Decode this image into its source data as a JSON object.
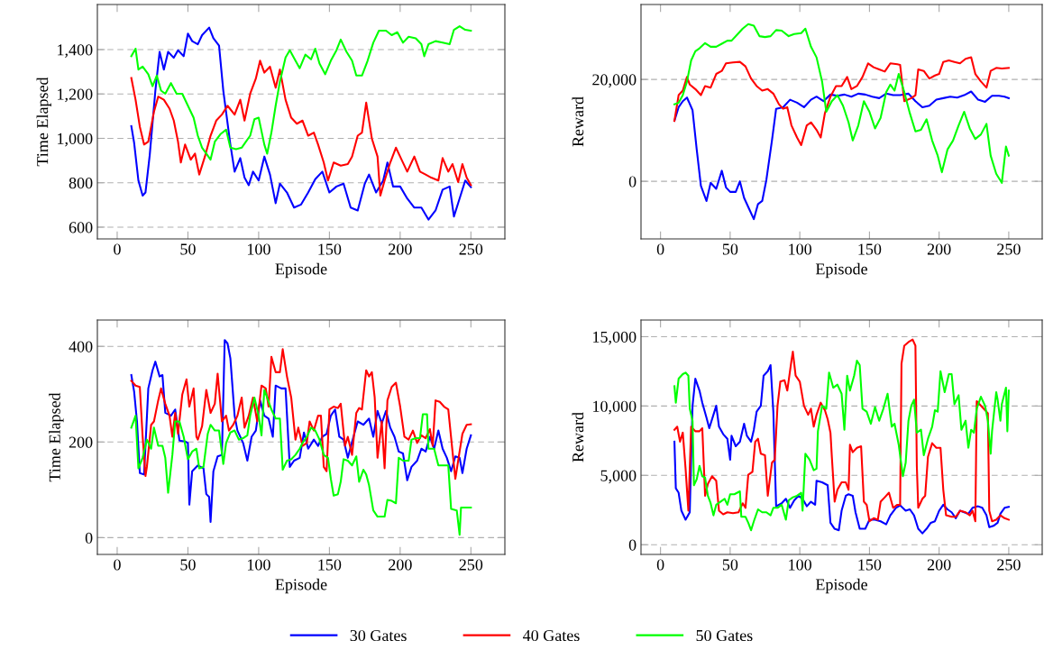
{
  "chart_data": [
    {
      "type": "line",
      "xlabel": "Episode",
      "ylabel": "Time Elapsed",
      "xlim": [
        -14,
        274
      ],
      "ylim": [
        547,
        1603
      ],
      "xticks": [
        0,
        50,
        100,
        150,
        200,
        250
      ],
      "yticks": [
        600,
        800,
        {
          "value": 1000,
          "label": "1,000"
        },
        {
          "value": 1200,
          "label": "1,200"
        },
        {
          "value": 1400,
          "label": "1,400"
        }
      ],
      "grid": "y",
      "legend": "bottom",
      "line_style": "solid",
      "marker": "none",
      "series": [
        {
          "name": "30 Gates",
          "color": "#0000ff",
          "x": [
            10,
            12,
            15,
            18,
            20,
            23,
            27,
            30,
            33,
            36,
            40,
            43,
            47,
            50,
            53,
            57,
            60,
            65,
            68,
            72,
            75,
            80,
            83,
            87,
            90,
            93,
            96,
            100,
            104,
            108,
            112,
            115,
            120,
            125,
            130,
            135,
            140,
            145,
            150,
            155,
            160,
            165,
            170,
            175,
            178,
            183,
            188,
            191,
            195,
            200,
            205,
            210,
            215,
            220,
            225,
            230,
            235,
            238,
            242,
            246,
            250
          ],
          "values": [
            1055,
            979,
            810,
            742,
            756,
            924,
            1215,
            1390,
            1310,
            1390,
            1363,
            1397,
            1370,
            1472,
            1438,
            1424,
            1465,
            1499,
            1451,
            1418,
            1215,
            972,
            850,
            911,
            823,
            789,
            850,
            810,
            918,
            837,
            708,
            796,
            756,
            688,
            702,
            756,
            816,
            850,
            756,
            783,
            796,
            688,
            675,
            796,
            837,
            756,
            810,
            891,
            783,
            783,
            729,
            688,
            688,
            634,
            675,
            769,
            783,
            648,
            729,
            810,
            780
          ]
        },
        {
          "name": "40 Gates",
          "color": "#ff0000",
          "x": [
            10,
            13,
            16,
            19,
            22,
            26,
            29,
            33,
            37,
            40,
            43,
            45,
            48,
            52,
            55,
            58,
            62,
            66,
            70,
            74,
            78,
            83,
            87,
            90,
            94,
            98,
            101,
            104,
            108,
            112,
            115,
            119,
            123,
            127,
            131,
            135,
            139,
            142,
            146,
            149,
            153,
            158,
            163,
            166,
            170,
            173,
            176,
            180,
            184,
            186,
            189,
            193,
            197,
            201,
            205,
            210,
            214,
            218,
            222,
            227,
            230,
            234,
            237,
            241,
            244,
            247,
            250
          ],
          "values": [
            1272,
            1174,
            1053,
            972,
            985,
            1120,
            1188,
            1174,
            1134,
            1080,
            985,
            891,
            972,
            904,
            931,
            837,
            918,
            1012,
            1080,
            1107,
            1147,
            1107,
            1174,
            1080,
            1201,
            1269,
            1350,
            1296,
            1323,
            1228,
            1310,
            1174,
            1093,
            1066,
            1080,
            1012,
            1026,
            972,
            891,
            810,
            891,
            877,
            884,
            918,
            1012,
            1026,
            1161,
            999,
            918,
            742,
            810,
            891,
            958,
            904,
            850,
            918,
            850,
            837,
            823,
            810,
            911,
            850,
            884,
            803,
            884,
            823,
            789
          ]
        },
        {
          "name": "50 Gates",
          "color": "#00ff00",
          "x": [
            10,
            13,
            15,
            18,
            22,
            25,
            28,
            31,
            34,
            38,
            42,
            46,
            50,
            54,
            57,
            60,
            63,
            66,
            69,
            73,
            77,
            80,
            84,
            88,
            91,
            94,
            97,
            100,
            104,
            106,
            109,
            112,
            115,
            119,
            122,
            126,
            129,
            133,
            137,
            140,
            143,
            147,
            151,
            155,
            158,
            162,
            166,
            169,
            173,
            177,
            181,
            185,
            190,
            194,
            198,
            202,
            206,
            211,
            215,
            217,
            220,
            225,
            230,
            235,
            238,
            242,
            246,
            250
          ],
          "values": [
            1370,
            1404,
            1310,
            1323,
            1289,
            1235,
            1283,
            1215,
            1201,
            1249,
            1201,
            1201,
            1147,
            1093,
            1012,
            958,
            931,
            904,
            985,
            1019,
            1039,
            958,
            951,
            958,
            985,
            1012,
            1086,
            1093,
            972,
            931,
            1026,
            1147,
            1255,
            1364,
            1397,
            1350,
            1316,
            1377,
            1356,
            1404,
            1337,
            1289,
            1350,
            1397,
            1445,
            1391,
            1350,
            1283,
            1283,
            1350,
            1431,
            1485,
            1485,
            1465,
            1478,
            1431,
            1458,
            1451,
            1424,
            1370,
            1424,
            1438,
            1431,
            1424,
            1489,
            1505,
            1489,
            1485
          ]
        }
      ]
    },
    {
      "type": "line",
      "xlabel": "Episode",
      "ylabel": "Reward",
      "xlim": [
        -14,
        274
      ],
      "ylim": [
        -11300,
        34700
      ],
      "xticks": [
        0,
        50,
        100,
        150,
        200,
        250
      ],
      "yticks": [
        0,
        {
          "value": 20000,
          "label": "20,000"
        }
      ],
      "grid": "y",
      "line_style": "solid",
      "marker": "none",
      "series": [
        {
          "color": "#0000ff",
          "x": [
            10,
            13,
            16,
            19,
            23,
            26,
            29,
            33,
            36,
            40,
            44,
            47,
            50,
            54,
            57,
            60,
            64,
            67,
            70,
            73,
            76,
            80,
            83,
            88,
            93,
            98,
            103,
            108,
            112,
            117,
            122,
            127,
            132,
            137,
            142,
            147,
            152,
            157,
            162,
            167,
            172,
            178,
            183,
            188,
            193,
            198,
            203,
            208,
            213,
            218,
            223,
            228,
            233,
            238,
            243,
            247,
            250
          ],
          "values": [
            11870,
            14540,
            15730,
            16440,
            13950,
            6230,
            -890,
            -3860,
            -300,
            -1480,
            2080,
            -1190,
            -2080,
            -2080,
            0,
            -3260,
            -5640,
            -7420,
            -4450,
            -3860,
            300,
            8010,
            14240,
            14540,
            16020,
            15430,
            14540,
            16020,
            16620,
            15730,
            17030,
            16800,
            17030,
            16620,
            17210,
            17030,
            16620,
            16320,
            17210,
            16910,
            16910,
            17210,
            15730,
            14540,
            14840,
            16020,
            16320,
            16620,
            16440,
            16910,
            17630,
            16020,
            15610,
            16800,
            16800,
            16620,
            16320
          ]
        },
        {
          "color": "#ff0000",
          "x": [
            10,
            13,
            16,
            19,
            21,
            25,
            29,
            32,
            36,
            40,
            44,
            47,
            52,
            57,
            61,
            65,
            69,
            73,
            77,
            81,
            85,
            88,
            91,
            94,
            98,
            101,
            105,
            108,
            112,
            115,
            118,
            122,
            126,
            130,
            134,
            137,
            141,
            145,
            149,
            153,
            157,
            161,
            165,
            170,
            172,
            175,
            180,
            183,
            185,
            189,
            193,
            197,
            200,
            203,
            207,
            211,
            215,
            219,
            223,
            226,
            230,
            234,
            237,
            241,
            245,
            250
          ],
          "values": [
            11870,
            16910,
            17800,
            20480,
            18990,
            18100,
            16910,
            18700,
            18400,
            21070,
            21660,
            23150,
            23320,
            23440,
            22550,
            20180,
            18700,
            17800,
            18100,
            17210,
            15130,
            14240,
            14540,
            10980,
            8600,
            7120,
            10980,
            11570,
            10090,
            8600,
            13350,
            16620,
            18700,
            18700,
            20480,
            18100,
            18700,
            20480,
            23150,
            22380,
            21960,
            21540,
            23150,
            22970,
            22850,
            15730,
            16320,
            16910,
            21960,
            21660,
            20180,
            20770,
            21070,
            23440,
            23740,
            23440,
            23150,
            24040,
            24330,
            21070,
            19590,
            18400,
            21660,
            22260,
            22140,
            22260
          ]
        },
        {
          "color": "#00ff00",
          "x": [
            10,
            13,
            16,
            19,
            22,
            25,
            28,
            32,
            36,
            40,
            44,
            48,
            51,
            55,
            59,
            63,
            67,
            71,
            75,
            79,
            83,
            87,
            92,
            96,
            101,
            104,
            108,
            112,
            116,
            119,
            123,
            127,
            131,
            135,
            138,
            142,
            146,
            150,
            154,
            158,
            162,
            165,
            168,
            171,
            175,
            179,
            183,
            187,
            191,
            195,
            199,
            202,
            206,
            210,
            214,
            218,
            222,
            226,
            230,
            234,
            237,
            241,
            245,
            248,
            250
          ],
          "values": [
            15130,
            15430,
            16910,
            19590,
            23740,
            25520,
            26110,
            27120,
            26410,
            26410,
            27000,
            27600,
            27600,
            28780,
            29970,
            30860,
            30560,
            28490,
            28310,
            28490,
            29680,
            29560,
            28490,
            28900,
            29080,
            29970,
            26410,
            24330,
            19590,
            13650,
            15730,
            16910,
            14840,
            11570,
            8010,
            10980,
            15730,
            13650,
            10390,
            12460,
            17510,
            18990,
            17800,
            21070,
            17510,
            13350,
            9790,
            10090,
            12170,
            8010,
            5040,
            1780,
            6230,
            8010,
            10980,
            13650,
            10390,
            8310,
            9200,
            11280,
            5040,
            1480,
            -300,
            6830,
            5040
          ]
        }
      ]
    },
    {
      "type": "line",
      "xlabel": "Episode",
      "ylabel": "Time Elapsed",
      "xlim": [
        -14,
        274
      ],
      "ylim": [
        -35,
        455
      ],
      "xticks": [
        0,
        50,
        100,
        150,
        200,
        250
      ],
      "yticks": [
        0,
        200,
        400
      ],
      "grid": "y",
      "line_style": "solid",
      "marker": "none",
      "series": [
        {
          "color": "#0000ff",
          "x": [
            10,
            12,
            14,
            16,
            19,
            22,
            25,
            27,
            30,
            32,
            34,
            38,
            41,
            44,
            48,
            50,
            51,
            53,
            57,
            61,
            63,
            65,
            66,
            68,
            71,
            74,
            76,
            78,
            80,
            83,
            85,
            89,
            92,
            95,
            98,
            101,
            104,
            107,
            110,
            112,
            116,
            119,
            122,
            125,
            129,
            132,
            135,
            139,
            142,
            145,
            148,
            151,
            154,
            157,
            160,
            163,
            167,
            170,
            174,
            178,
            181,
            184,
            187,
            190,
            193,
            196,
            199,
            202,
            205,
            208,
            212,
            215,
            218,
            221,
            224,
            227,
            230,
            233,
            236,
            239,
            242,
            244,
            247,
            250
          ],
          "values": [
            340,
            305,
            243,
            135,
            132,
            312,
            350,
            368,
            337,
            340,
            261,
            255,
            268,
            203,
            201,
            198,
            69,
            139,
            151,
            145,
            91,
            85,
            33,
            139,
            170,
            173,
            413,
            406,
            375,
            255,
            224,
            198,
            161,
            211,
            224,
            287,
            255,
            249,
            211,
            318,
            312,
            312,
            148,
            161,
            167,
            220,
            186,
            205,
            192,
            211,
            217,
            255,
            268,
            211,
            205,
            167,
            211,
            243,
            236,
            249,
            211,
            265,
            239,
            265,
            230,
            211,
            180,
            176,
            120,
            148,
            161,
            186,
            180,
            211,
            186,
            224,
            186,
            167,
            139,
            170,
            167,
            135,
            186,
            214
          ]
        },
        {
          "color": "#ff0000",
          "x": [
            10,
            13,
            16,
            18,
            20,
            21,
            24,
            26,
            29,
            31,
            34,
            37,
            39,
            41,
            43,
            46,
            49,
            51,
            54,
            56,
            57,
            60,
            63,
            66,
            69,
            71,
            74,
            77,
            79,
            82,
            85,
            88,
            90,
            93,
            96,
            99,
            102,
            105,
            107,
            109,
            112,
            115,
            117,
            120,
            123,
            126,
            128,
            131,
            134,
            136,
            139,
            142,
            144,
            146,
            148,
            150,
            153,
            156,
            158,
            161,
            163,
            166,
            169,
            171,
            173,
            176,
            178,
            180,
            182,
            184,
            187,
            189,
            191,
            194,
            197,
            200,
            203,
            206,
            209,
            212,
            215,
            218,
            221,
            223,
            225,
            228,
            231,
            234,
            237,
            239,
            242,
            244,
            247,
            250
          ],
          "values": [
            328,
            318,
            315,
            211,
            129,
            148,
            236,
            243,
            287,
            312,
            280,
            255,
            211,
            261,
            217,
            299,
            331,
            274,
            312,
            211,
            205,
            233,
            309,
            261,
            280,
            343,
            243,
            255,
            224,
            236,
            255,
            293,
            230,
            255,
            293,
            243,
            318,
            312,
            274,
            378,
            346,
            346,
            394,
            337,
            293,
            205,
            230,
            192,
            198,
            243,
            224,
            255,
            255,
            148,
            139,
            268,
            274,
            271,
            280,
            192,
            211,
            173,
            261,
            271,
            268,
            350,
            337,
            346,
            293,
            167,
            243,
            145,
            287,
            315,
            324,
            274,
            211,
            205,
            224,
            198,
            214,
            208,
            227,
            192,
            287,
            284,
            274,
            268,
            180,
            123,
            180,
            217,
            236,
            237
          ]
        },
        {
          "color": "#00ff00",
          "x": [
            10,
            13,
            15,
            18,
            21,
            24,
            26,
            29,
            32,
            34,
            36,
            39,
            41,
            44,
            47,
            50,
            53,
            56,
            58,
            61,
            64,
            66,
            69,
            72,
            75,
            77,
            80,
            83,
            86,
            89,
            92,
            94,
            97,
            100,
            102,
            104,
            106,
            109,
            112,
            115,
            117,
            120,
            123,
            126,
            129,
            131,
            134,
            137,
            140,
            143,
            146,
            149,
            151,
            153,
            156,
            158,
            160,
            163,
            166,
            169,
            171,
            174,
            176,
            178,
            181,
            184,
            187,
            189,
            191,
            194,
            197,
            199,
            202,
            206,
            208,
            211,
            214,
            216,
            219,
            220,
            224,
            227,
            230,
            234,
            236,
            240,
            242,
            243,
            250
          ],
          "values": [
            230,
            255,
            145,
            167,
            205,
            186,
            230,
            192,
            192,
            167,
            94,
            173,
            243,
            243,
            211,
            164,
            180,
            186,
            145,
            148,
            217,
            236,
            224,
            224,
            154,
            198,
            220,
            224,
            205,
            208,
            214,
            255,
            293,
            255,
            214,
            309,
            293,
            268,
            249,
            249,
            142,
            161,
            164,
            173,
            186,
            198,
            211,
            230,
            224,
            205,
            173,
            167,
            123,
            88,
            91,
            117,
            164,
            161,
            151,
            170,
            117,
            142,
            132,
            110,
            57,
            44,
            44,
            44,
            79,
            77,
            72,
            167,
            161,
            161,
            205,
            208,
            208,
            258,
            258,
            186,
            186,
            151,
            151,
            151,
            60,
            57,
            6,
            63,
            63
          ]
        }
      ]
    },
    {
      "type": "line",
      "xlabel": "Episode",
      "ylabel": "Reward",
      "xlim": [
        -14,
        274
      ],
      "ylim": [
        -700,
        16200
      ],
      "xticks": [
        0,
        50,
        100,
        150,
        200,
        250
      ],
      "yticks": [
        0,
        {
          "value": 5000,
          "label": "5,000"
        },
        {
          "value": 10000,
          "label": "10,000"
        },
        {
          "value": 15000,
          "label": "15,000"
        }
      ],
      "grid": "y",
      "line_style": "solid",
      "marker": "none",
      "series": [
        {
          "color": "#0000ff",
          "x": [
            10,
            11,
            13,
            15,
            18,
            21,
            23,
            25,
            28,
            30,
            33,
            35,
            38,
            40,
            42,
            45,
            48,
            50,
            51,
            54,
            57,
            60,
            62,
            65,
            67,
            69,
            72,
            74,
            77,
            79,
            81,
            83,
            87,
            90,
            93,
            96,
            99,
            102,
            105,
            108,
            111,
            112,
            116,
            120,
            122,
            125,
            128,
            130,
            133,
            135,
            138,
            140,
            143,
            147,
            150,
            154,
            158,
            162,
            165,
            169,
            172,
            176,
            179,
            182,
            185,
            188,
            191,
            194,
            197,
            200,
            203,
            206,
            209,
            212,
            215,
            218,
            221,
            224,
            228,
            231,
            234,
            236,
            239,
            242,
            244,
            247,
            250
          ],
          "values": [
            7430,
            4070,
            3750,
            2450,
            1800,
            2340,
            10020,
            11970,
            11110,
            10240,
            9160,
            8400,
            9370,
            10020,
            8510,
            7970,
            7640,
            6130,
            7860,
            7100,
            7430,
            8720,
            7860,
            7430,
            8290,
            9590,
            10020,
            12190,
            12510,
            12950,
            9590,
            2770,
            2990,
            3310,
            2660,
            3200,
            3530,
            3310,
            2770,
            3100,
            2880,
            4610,
            4500,
            4290,
            1580,
            1150,
            1040,
            2450,
            3530,
            3640,
            3530,
            2340,
            1150,
            1150,
            1800,
            1800,
            1690,
            1470,
            2120,
            2660,
            2840,
            2450,
            2550,
            2120,
            1150,
            820,
            1150,
            1580,
            1690,
            2450,
            2880,
            2550,
            2340,
            1910,
            2450,
            2340,
            2230,
            2660,
            2770,
            2660,
            2120,
            1260,
            1360,
            1580,
            2230,
            2660,
            2730
          ]
        },
        {
          "color": "#ff0000",
          "x": [
            10,
            12,
            14,
            16,
            18,
            20,
            22,
            25,
            28,
            30,
            32,
            34,
            37,
            40,
            42,
            45,
            48,
            52,
            56,
            59,
            61,
            63,
            66,
            68,
            70,
            72,
            75,
            77,
            80,
            82,
            84,
            86,
            89,
            91,
            94,
            95,
            97,
            100,
            103,
            106,
            108,
            110,
            112,
            115,
            118,
            120,
            122,
            123,
            125,
            127,
            130,
            133,
            135,
            136,
            138,
            141,
            144,
            146,
            148,
            150,
            153,
            156,
            158,
            161,
            164,
            167,
            170,
            172,
            173,
            175,
            178,
            181,
            183,
            184,
            185,
            188,
            190,
            192,
            195,
            198,
            201,
            203,
            205,
            209,
            212,
            215,
            219,
            222,
            224,
            226,
            227,
            230,
            233,
            235,
            236,
            238,
            241,
            244,
            247,
            250
          ],
          "values": [
            8290,
            8510,
            7430,
            8080,
            5480,
            2450,
            8510,
            8180,
            8180,
            8400,
            3530,
            4390,
            4940,
            4610,
            2450,
            2190,
            2340,
            2270,
            2340,
            2990,
            2660,
            5040,
            5260,
            7430,
            7640,
            6560,
            6450,
            3530,
            5910,
            6130,
            10020,
            11760,
            11860,
            11110,
            13270,
            13920,
            12190,
            11760,
            10020,
            9370,
            9810,
            8510,
            9370,
            10240,
            9700,
            9050,
            8080,
            6340,
            3100,
            3960,
            4500,
            4500,
            3960,
            7210,
            6670,
            6990,
            7100,
            3100,
            2880,
            1690,
            1910,
            1800,
            3100,
            3420,
            3750,
            2660,
            2880,
            2880,
            13050,
            14350,
            14610,
            14790,
            14350,
            5690,
            2660,
            3310,
            3530,
            6340,
            7320,
            6990,
            6990,
            3960,
            2120,
            2010,
            2010,
            2450,
            2340,
            2120,
            2450,
            1690,
            10350,
            10020,
            9700,
            9480,
            2450,
            1690,
            1800,
            2120,
            1910,
            1800
          ]
        },
        {
          "color": "#00ff00",
          "x": [
            10,
            11,
            13,
            16,
            18,
            20,
            21,
            23,
            24,
            26,
            28,
            30,
            32,
            34,
            36,
            38,
            40,
            43,
            46,
            48,
            50,
            53,
            57,
            58,
            61,
            63,
            65,
            67,
            70,
            73,
            76,
            79,
            81,
            84,
            87,
            90,
            92,
            95,
            98,
            101,
            102,
            104,
            107,
            110,
            112,
            113,
            116,
            119,
            121,
            124,
            127,
            130,
            132,
            134,
            136,
            139,
            141,
            143,
            145,
            148,
            151,
            154,
            157,
            160,
            163,
            166,
            168,
            171,
            174,
            176,
            178,
            180,
            182,
            184,
            187,
            189,
            192,
            195,
            197,
            199,
            201,
            204,
            207,
            209,
            211,
            214,
            216,
            219,
            221,
            223,
            225,
            227,
            230,
            233,
            235,
            237,
            238,
            241,
            242,
            244,
            245,
            248,
            249,
            250
          ],
          "values": [
            11430,
            10240,
            11970,
            12300,
            12410,
            12190,
            9810,
            8940,
            4290,
            4720,
            5690,
            4940,
            4830,
            3530,
            2990,
            2120,
            2880,
            3100,
            3310,
            2880,
            3640,
            3640,
            3850,
            2010,
            2010,
            1580,
            1040,
            1690,
            2550,
            2340,
            2340,
            2120,
            2660,
            2660,
            2880,
            1800,
            3200,
            3420,
            3530,
            3750,
            2450,
            6560,
            6130,
            5370,
            5480,
            8180,
            10020,
            9810,
            12410,
            11320,
            11540,
            10890,
            8290,
            12190,
            11110,
            12190,
            13270,
            12950,
            9810,
            9590,
            8720,
            9920,
            8940,
            9810,
            10890,
            8510,
            8720,
            7210,
            4940,
            5910,
            8940,
            10020,
            10460,
            8080,
            8290,
            6450,
            7640,
            8510,
            9700,
            9590,
            12510,
            11000,
            12300,
            12300,
            10130,
            10780,
            8290,
            8940,
            6990,
            8290,
            8080,
            9810,
            10670,
            10020,
            8940,
            6560,
            8180,
            11000,
            10460,
            8940,
            10130,
            11320,
            8180,
            11110
          ]
        }
      ]
    }
  ]
}
